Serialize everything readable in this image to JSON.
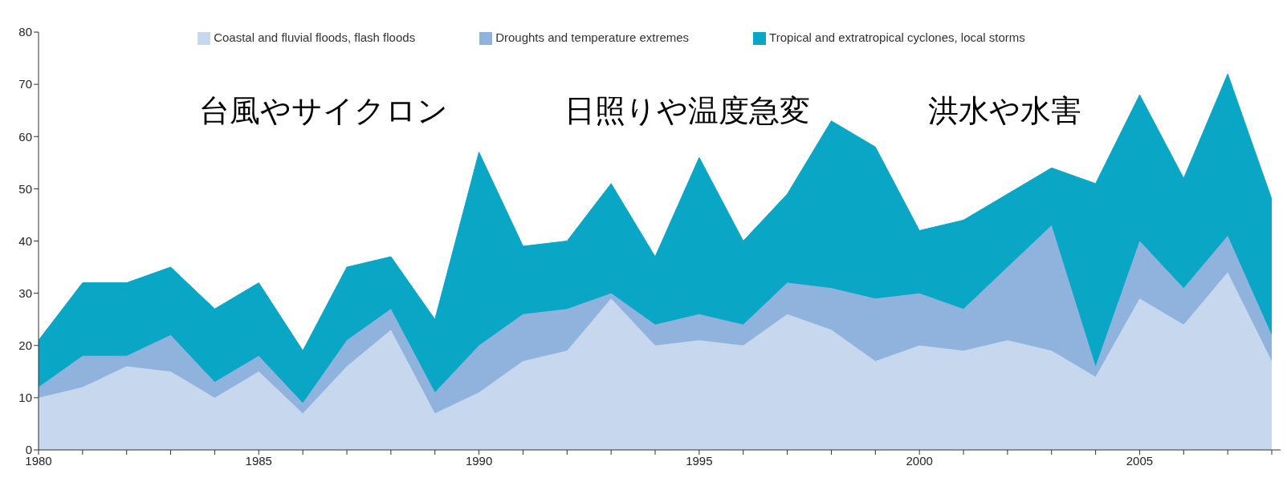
{
  "chart_data": {
    "type": "area",
    "stacked": true,
    "legend": "top",
    "x": [
      1980,
      1981,
      1982,
      1983,
      1984,
      1985,
      1986,
      1987,
      1988,
      1989,
      1990,
      1991,
      1992,
      1993,
      1994,
      1995,
      1996,
      1997,
      1998,
      1999,
      2000,
      2001,
      2002,
      2003,
      2004,
      2005,
      2006,
      2007,
      2008
    ],
    "series": [
      {
        "name": "Coastal and fluvial floods, flash floods",
        "color": "#c6d7ee",
        "values": [
          10,
          12,
          16,
          15,
          10,
          15,
          7,
          16,
          23,
          7,
          11,
          17,
          19,
          29,
          20,
          21,
          20,
          26,
          23,
          17,
          20,
          19,
          21,
          19,
          14,
          29,
          24,
          34,
          17
        ]
      },
      {
        "name": "Droughts and temperature extremes",
        "color": "#8fb3dd",
        "values": [
          2,
          6,
          2,
          7,
          3,
          3,
          2,
          5,
          4,
          4,
          9,
          9,
          8,
          1,
          4,
          5,
          4,
          6,
          8,
          12,
          10,
          8,
          14,
          24,
          2,
          11,
          7,
          7,
          5
        ]
      },
      {
        "name": "Tropical and extratropical cyclones, local storms",
        "color": "#0aa6c6",
        "values": [
          9,
          14,
          14,
          13,
          14,
          14,
          10,
          14,
          10,
          14,
          37,
          13,
          13,
          21,
          13,
          30,
          16,
          17,
          32,
          29,
          12,
          17,
          14,
          11,
          35,
          28,
          21,
          31,
          26
        ]
      }
    ],
    "xlim": [
      1980,
      2008.2
    ],
    "xticks": [
      1980,
      {
        "value": 1981,
        "label": null
      },
      {
        "value": 1982,
        "label": null
      },
      {
        "value": 1983,
        "label": null
      },
      {
        "value": 1984,
        "label": null
      },
      1985,
      {
        "value": 1986,
        "label": null
      },
      {
        "value": 1987,
        "label": null
      },
      {
        "value": 1988,
        "label": null
      },
      {
        "value": 1989,
        "label": null
      },
      1990,
      {
        "value": 1991,
        "label": null
      },
      {
        "value": 1992,
        "label": null
      },
      {
        "value": 1993,
        "label": null
      },
      {
        "value": 1994,
        "label": null
      },
      1995,
      {
        "value": 1996,
        "label": null
      },
      {
        "value": 1997,
        "label": null
      },
      {
        "value": 1998,
        "label": null
      },
      {
        "value": 1999,
        "label": null
      },
      2000,
      {
        "value": 2001,
        "label": null
      },
      {
        "value": 2002,
        "label": null
      },
      {
        "value": 2003,
        "label": null
      },
      {
        "value": 2004,
        "label": null
      },
      2005,
      {
        "value": 2006,
        "label": null
      },
      {
        "value": 2007,
        "label": null
      },
      {
        "value": 2008,
        "label": null
      }
    ],
    "ylim": [
      0,
      80
    ],
    "yticks": [
      0,
      10,
      20,
      30,
      40,
      50,
      60,
      70,
      80
    ],
    "annotations": [
      "台風やサイクロン",
      "日照りや温度急変",
      "洪水や水害"
    ]
  }
}
